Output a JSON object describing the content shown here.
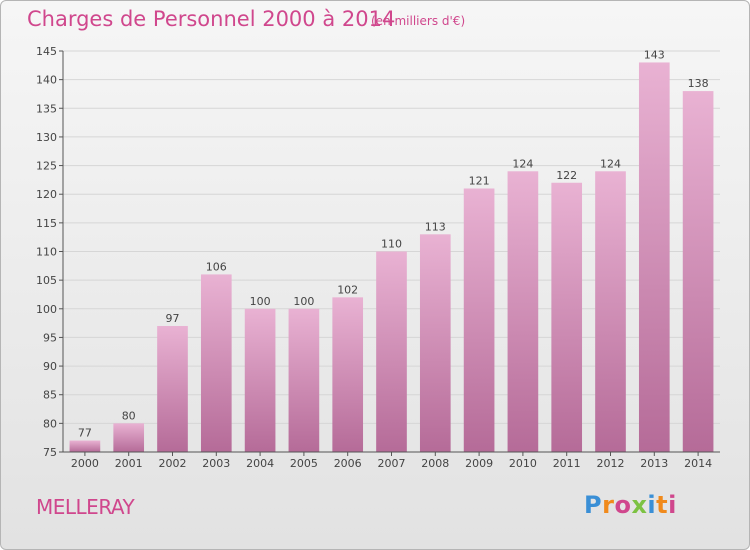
{
  "header": {
    "title": "Charges de Personnel 2000 à 2014",
    "subtitle": "(en milliers d'€)"
  },
  "footer": {
    "commune": "MELLERAY",
    "logo": "Proxiti"
  },
  "colors": {
    "accent": "#d0478d",
    "bar_top": "#e9b2d3",
    "bar_bottom": "#b56b98"
  },
  "chart_data": {
    "type": "bar",
    "categories": [
      "2000",
      "2001",
      "2002",
      "2003",
      "2004",
      "2005",
      "2006",
      "2007",
      "2008",
      "2009",
      "2010",
      "2011",
      "2012",
      "2013",
      "2014"
    ],
    "values": [
      77,
      80,
      97,
      106,
      100,
      100,
      102,
      110,
      113,
      121,
      124,
      122,
      124,
      143,
      138
    ],
    "ylim": [
      75,
      145
    ],
    "yticks": [
      75,
      80,
      85,
      90,
      95,
      100,
      105,
      110,
      115,
      120,
      125,
      130,
      135,
      140,
      145
    ],
    "grid": true,
    "data_labels": true
  }
}
